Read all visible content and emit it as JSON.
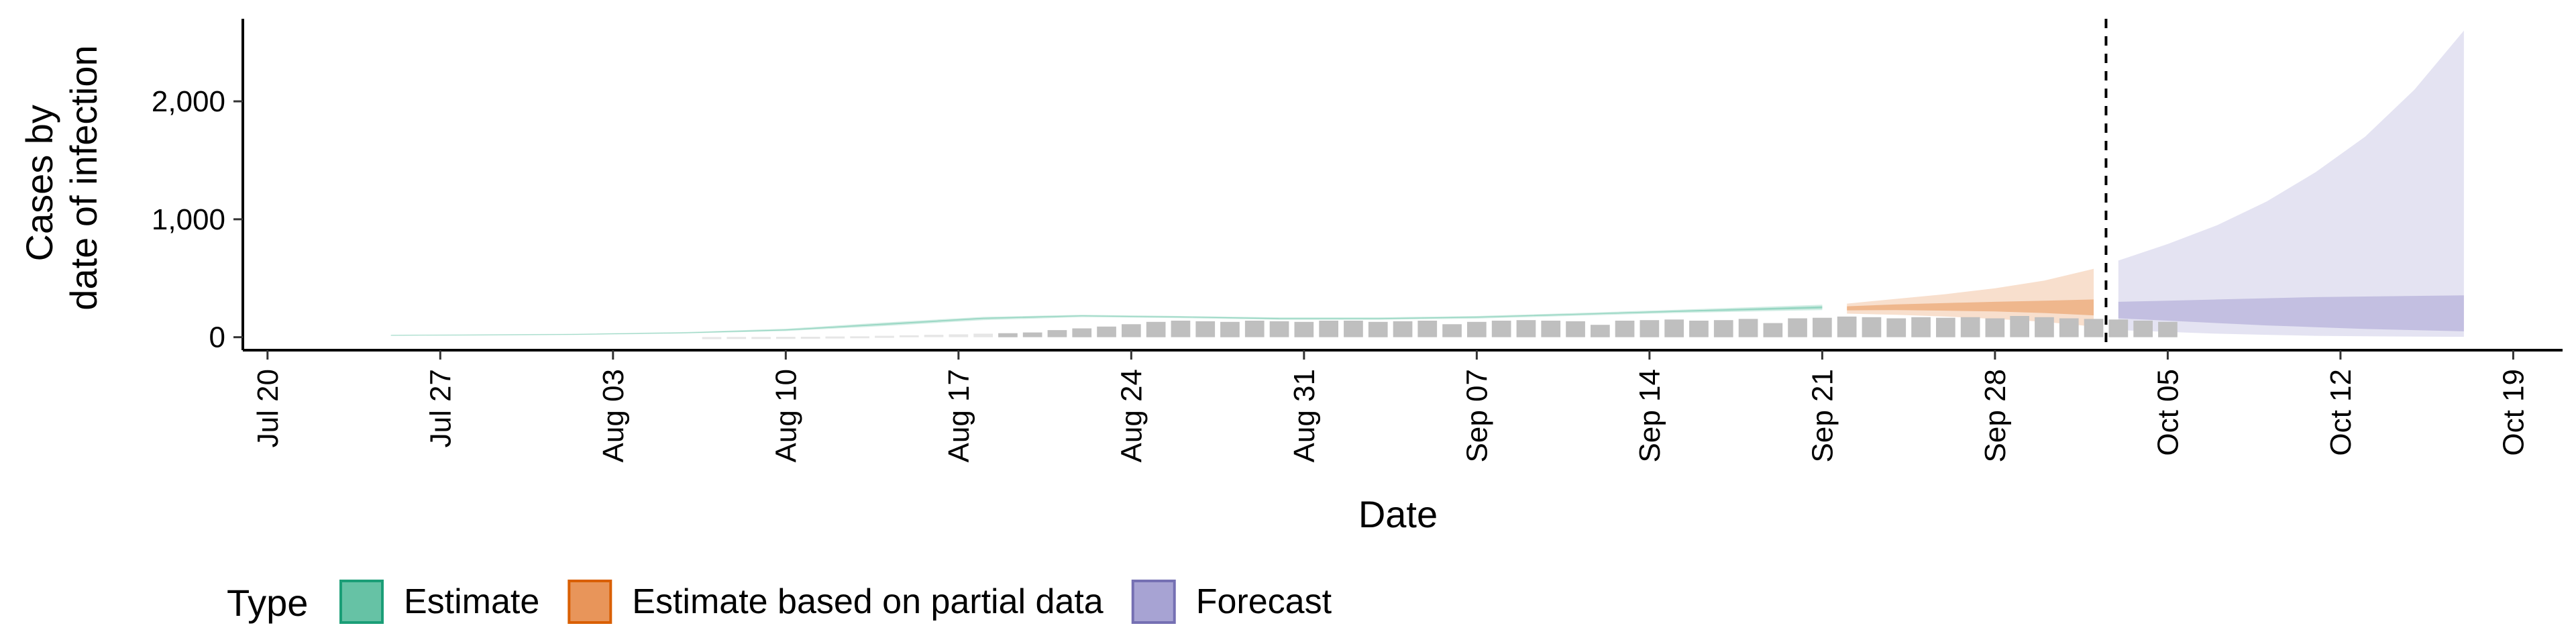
{
  "chart_data": {
    "type": "area",
    "xlabel": "Date",
    "ylabel_lines": [
      "Cases by",
      "date of infection"
    ],
    "x_range": [
      "2020-07-19",
      "2020-10-21"
    ],
    "x_ticks": [
      {
        "date": "2020-07-20",
        "label": "Jul 20"
      },
      {
        "date": "2020-07-27",
        "label": "Jul 27"
      },
      {
        "date": "2020-08-03",
        "label": "Aug 03"
      },
      {
        "date": "2020-08-10",
        "label": "Aug 10"
      },
      {
        "date": "2020-08-17",
        "label": "Aug 17"
      },
      {
        "date": "2020-08-24",
        "label": "Aug 24"
      },
      {
        "date": "2020-08-31",
        "label": "Aug 31"
      },
      {
        "date": "2020-09-07",
        "label": "Sep 07"
      },
      {
        "date": "2020-09-14",
        "label": "Sep 14"
      },
      {
        "date": "2020-09-21",
        "label": "Sep 21"
      },
      {
        "date": "2020-09-28",
        "label": "Sep 28"
      },
      {
        "date": "2020-10-05",
        "label": "Oct 05"
      },
      {
        "date": "2020-10-12",
        "label": "Oct 12"
      },
      {
        "date": "2020-10-19",
        "label": "Oct 19"
      }
    ],
    "y_range": [
      -110,
      2700
    ],
    "y_ticks": [
      {
        "value": 0,
        "label": "0"
      },
      {
        "value": 1000,
        "label": "1,000"
      },
      {
        "value": 2000,
        "label": "2,000"
      }
    ],
    "vline_date": "2020-10-02",
    "legend": {
      "title": "Type",
      "position": "bottom",
      "items": [
        {
          "label": "Estimate",
          "fill": "#66c2a5",
          "border": "#1b9e77"
        },
        {
          "label": "Estimate based on partial data",
          "fill": "#e8955a",
          "border": "#d95f02"
        },
        {
          "label": "Forecast",
          "fill": "#a7a3d3",
          "border": "#7570b3"
        }
      ]
    },
    "colors": {
      "estimate": "#66c2a5",
      "partial": "#e8955a",
      "forecast": "#a7a3d3",
      "bars": "#bfbfbf",
      "bars_early": "#e6e6e6"
    },
    "reported_cases": {
      "start_date": "2020-08-07",
      "values": [
        1,
        2,
        2,
        3,
        4,
        6,
        8,
        12,
        16,
        20,
        24,
        30,
        34,
        40,
        60,
        75,
        90,
        110,
        130,
        140,
        135,
        130,
        140,
        135,
        130,
        140,
        140,
        130,
        135,
        140,
        110,
        130,
        140,
        145,
        140,
        135,
        105,
        140,
        145,
        150,
        140,
        145,
        155,
        120,
        160,
        165,
        175,
        170,
        160,
        170,
        165,
        170,
        160,
        180,
        170,
        160,
        155,
        150,
        140,
        130
      ]
    },
    "series": [
      {
        "name": "Estimate",
        "color": "#66c2a5",
        "dates": [
          "2020-07-25",
          "2020-08-01",
          "2020-08-06",
          "2020-08-10",
          "2020-08-14",
          "2020-08-18",
          "2020-08-22",
          "2020-08-26",
          "2020-08-30",
          "2020-09-03",
          "2020-09-07",
          "2020-09-11",
          "2020-09-15",
          "2020-09-21"
        ],
        "lower": [
          12,
          18,
          32,
          52,
          95,
          145,
          170,
          162,
          148,
          148,
          158,
          182,
          205,
          230
        ],
        "upper": [
          20,
          28,
          44,
          72,
          125,
          172,
          190,
          180,
          168,
          168,
          180,
          205,
          232,
          275
        ],
        "lower2": [
          14,
          21,
          35,
          58,
          105,
          155,
          178,
          168,
          154,
          154,
          166,
          190,
          214,
          244
        ],
        "upper2": [
          18,
          25,
          40,
          65,
          115,
          165,
          185,
          175,
          162,
          162,
          174,
          198,
          224,
          262
        ]
      },
      {
        "name": "Estimate based on partial data",
        "color": "#e8955a",
        "dates": [
          "2020-09-22",
          "2020-09-24",
          "2020-09-26",
          "2020-09-28",
          "2020-09-30",
          "2020-10-02"
        ],
        "lower": [
          200,
          190,
          175,
          155,
          130,
          90
        ],
        "upper": [
          285,
          325,
          365,
          415,
          480,
          580
        ],
        "lower2": [
          228,
          230,
          225,
          218,
          205,
          185
        ],
        "upper2": [
          262,
          278,
          290,
          300,
          310,
          320
        ]
      },
      {
        "name": "Forecast",
        "color": "#a7a3d3",
        "dates": [
          "2020-10-03",
          "2020-10-05",
          "2020-10-07",
          "2020-10-09",
          "2020-10-11",
          "2020-10-13",
          "2020-10-15",
          "2020-10-17"
        ],
        "lower": [
          60,
          45,
          30,
          20,
          12,
          8,
          5,
          3
        ],
        "upper": [
          650,
          790,
          950,
          1150,
          1400,
          1700,
          2100,
          2600
        ],
        "lower2": [
          160,
          140,
          120,
          100,
          85,
          70,
          60,
          50
        ],
        "upper2": [
          300,
          310,
          320,
          330,
          340,
          345,
          350,
          355
        ]
      }
    ]
  }
}
